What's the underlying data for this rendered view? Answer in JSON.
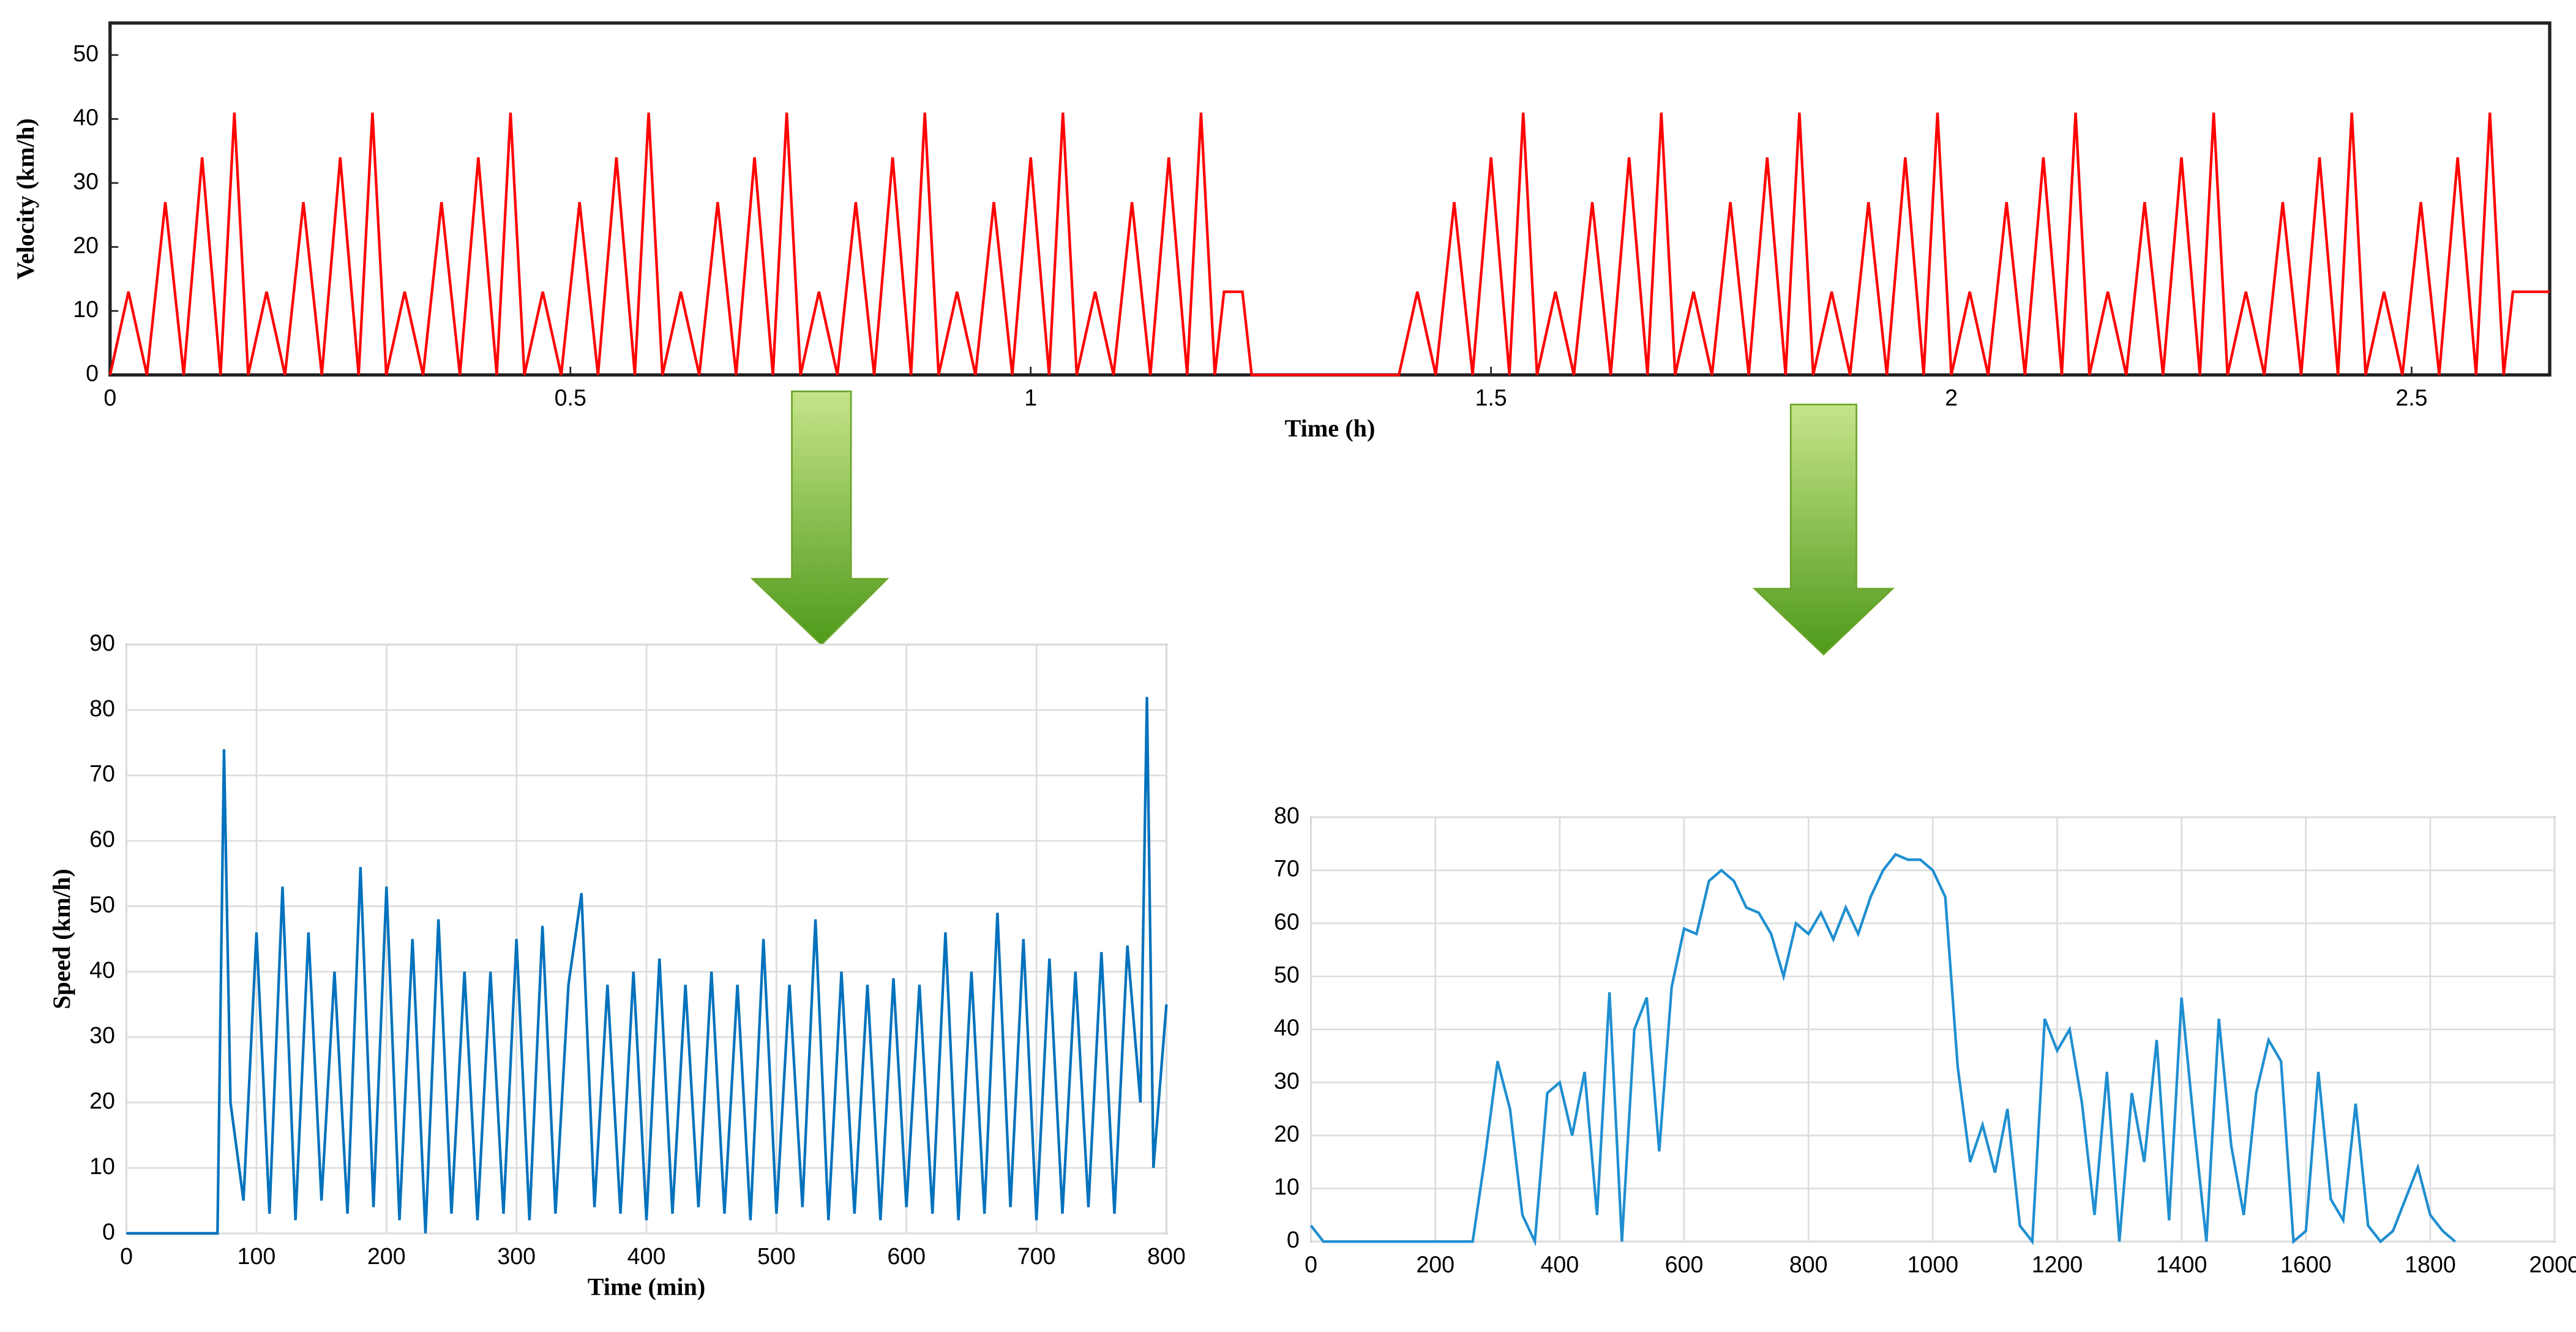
{
  "chart_data": [
    {
      "type": "line",
      "ylabel": "Velocity (km/h)",
      "xlabel": "Time (h)",
      "xlim": [
        0,
        2.65
      ],
      "ylim": [
        0,
        55
      ],
      "xticks": [
        0,
        0.5,
        1,
        1.5,
        2,
        2.5
      ],
      "yticks": [
        0,
        10,
        20,
        30,
        40,
        50
      ],
      "grid": false,
      "x": [
        0,
        0.02,
        0.04,
        0.06,
        0.08,
        0.1,
        0.12,
        0.135,
        0.15,
        0.17,
        0.19,
        0.21,
        0.23,
        0.25,
        0.27,
        0.285,
        0.3,
        0.32,
        0.34,
        0.36,
        0.38,
        0.4,
        0.42,
        0.435,
        0.45,
        0.47,
        0.49,
        0.51,
        0.53,
        0.55,
        0.57,
        0.585,
        0.6,
        0.62,
        0.64,
        0.66,
        0.68,
        0.7,
        0.72,
        0.735,
        0.75,
        0.77,
        0.79,
        0.81,
        0.83,
        0.85,
        0.87,
        0.885,
        0.9,
        0.92,
        0.94,
        0.96,
        0.98,
        1.0,
        1.02,
        1.035,
        1.05,
        1.07,
        1.09,
        1.11,
        1.13,
        1.15,
        1.17,
        1.185,
        1.2,
        1.21,
        1.23,
        1.24,
        1.4,
        1.42,
        1.44,
        1.46,
        1.48,
        1.5,
        1.52,
        1.535,
        1.55,
        1.57,
        1.59,
        1.61,
        1.63,
        1.65,
        1.67,
        1.685,
        1.7,
        1.72,
        1.74,
        1.76,
        1.78,
        1.8,
        1.82,
        1.835,
        1.85,
        1.87,
        1.89,
        1.91,
        1.93,
        1.95,
        1.97,
        1.985,
        2.0,
        2.02,
        2.04,
        2.06,
        2.08,
        2.1,
        2.12,
        2.135,
        2.15,
        2.17,
        2.19,
        2.21,
        2.23,
        2.25,
        2.27,
        2.285,
        2.3,
        2.32,
        2.34,
        2.36,
        2.38,
        2.4,
        2.42,
        2.435,
        2.45,
        2.47,
        2.49,
        2.51,
        2.53,
        2.55,
        2.57,
        2.585,
        2.6,
        2.61,
        2.65
      ],
      "series": [
        {
          "color": "#ff0000",
          "values": [
            0,
            13,
            0,
            27,
            0,
            34,
            0,
            41,
            0,
            13,
            0,
            27,
            0,
            34,
            0,
            41,
            0,
            13,
            0,
            27,
            0,
            34,
            0,
            41,
            0,
            13,
            0,
            27,
            0,
            34,
            0,
            41,
            0,
            13,
            0,
            27,
            0,
            34,
            0,
            41,
            0,
            13,
            0,
            27,
            0,
            34,
            0,
            41,
            0,
            13,
            0,
            27,
            0,
            34,
            0,
            41,
            0,
            13,
            0,
            27,
            0,
            34,
            0,
            41,
            0,
            13,
            13,
            0,
            0,
            13,
            0,
            27,
            0,
            34,
            0,
            41,
            0,
            13,
            0,
            27,
            0,
            34,
            0,
            41,
            0,
            13,
            0,
            27,
            0,
            34,
            0,
            41,
            0,
            13,
            0,
            27,
            0,
            34,
            0,
            41,
            0,
            13,
            0,
            27,
            0,
            34,
            0,
            41,
            0,
            13,
            0,
            27,
            0,
            34,
            0,
            41,
            0,
            13,
            0,
            27,
            0,
            34,
            0,
            41,
            0,
            13,
            0,
            27,
            0,
            34,
            0,
            41,
            0,
            13,
            13
          ]
        }
      ]
    },
    {
      "type": "line",
      "ylabel": "Speed (km/h)",
      "xlabel": "Time (min)",
      "xlim": [
        0,
        800
      ],
      "ylim": [
        0,
        90
      ],
      "xticks": [
        0,
        100,
        200,
        300,
        400,
        500,
        600,
        700,
        800
      ],
      "yticks": [
        0,
        10,
        20,
        30,
        40,
        50,
        60,
        70,
        80,
        90
      ],
      "grid": true,
      "x": [
        0,
        70,
        75,
        80,
        90,
        100,
        110,
        120,
        130,
        140,
        150,
        160,
        170,
        180,
        190,
        200,
        210,
        220,
        230,
        240,
        250,
        260,
        270,
        280,
        290,
        300,
        310,
        320,
        330,
        340,
        350,
        360,
        370,
        380,
        390,
        400,
        410,
        420,
        430,
        440,
        450,
        460,
        470,
        480,
        490,
        500,
        510,
        520,
        530,
        540,
        550,
        560,
        570,
        580,
        590,
        600,
        610,
        620,
        630,
        640,
        650,
        660,
        670,
        680,
        690,
        700,
        710,
        720,
        730,
        740,
        750,
        760,
        770,
        780,
        785,
        790,
        800
      ],
      "series": [
        {
          "color": "#0072bd",
          "values": [
            0,
            0,
            74,
            20,
            5,
            46,
            3,
            53,
            2,
            46,
            5,
            40,
            3,
            56,
            4,
            53,
            2,
            45,
            0,
            48,
            3,
            40,
            2,
            40,
            3,
            45,
            2,
            47,
            3,
            38,
            52,
            4,
            38,
            3,
            40,
            2,
            42,
            3,
            38,
            4,
            40,
            3,
            38,
            2,
            45,
            3,
            38,
            4,
            48,
            2,
            40,
            3,
            38,
            2,
            39,
            4,
            38,
            3,
            46,
            2,
            40,
            3,
            49,
            4,
            45,
            2,
            42,
            3,
            40,
            4,
            43,
            3,
            44,
            20,
            82,
            10,
            35
          ]
        }
      ]
    },
    {
      "type": "line",
      "xlim": [
        0,
        2000
      ],
      "ylim": [
        0,
        80
      ],
      "xticks": [
        0,
        200,
        400,
        600,
        800,
        1000,
        1200,
        1400,
        1600,
        1800,
        2000
      ],
      "yticks": [
        0,
        10,
        20,
        30,
        40,
        50,
        60,
        70,
        80
      ],
      "grid": true,
      "x": [
        0,
        20,
        260,
        280,
        300,
        320,
        340,
        360,
        380,
        400,
        420,
        440,
        460,
        480,
        500,
        520,
        540,
        560,
        580,
        600,
        620,
        640,
        660,
        680,
        700,
        720,
        740,
        760,
        780,
        800,
        820,
        840,
        860,
        880,
        900,
        920,
        940,
        960,
        980,
        1000,
        1020,
        1040,
        1060,
        1080,
        1100,
        1120,
        1140,
        1160,
        1180,
        1200,
        1220,
        1240,
        1260,
        1280,
        1300,
        1320,
        1340,
        1360,
        1380,
        1400,
        1420,
        1440,
        1460,
        1480,
        1500,
        1520,
        1540,
        1560,
        1580,
        1600,
        1620,
        1640,
        1660,
        1680,
        1700,
        1720,
        1740,
        1760,
        1780,
        1800,
        1820,
        1840
      ],
      "series": [
        {
          "color": "#1f8fd0",
          "values": [
            3,
            0,
            0,
            16,
            34,
            25,
            5,
            0,
            28,
            30,
            20,
            32,
            5,
            47,
            0,
            40,
            46,
            17,
            48,
            59,
            58,
            68,
            70,
            68,
            63,
            62,
            58,
            50,
            60,
            58,
            62,
            57,
            63,
            58,
            65,
            70,
            73,
            72,
            72,
            70,
            65,
            33,
            15,
            22,
            13,
            25,
            3,
            0,
            42,
            36,
            40,
            26,
            5,
            32,
            0,
            28,
            15,
            38,
            4,
            46,
            22,
            0,
            42,
            18,
            5,
            28,
            38,
            34,
            0,
            2,
            32,
            8,
            4,
            26,
            3,
            0,
            2,
            8,
            14,
            5,
            2,
            0
          ]
        }
      ]
    }
  ]
}
